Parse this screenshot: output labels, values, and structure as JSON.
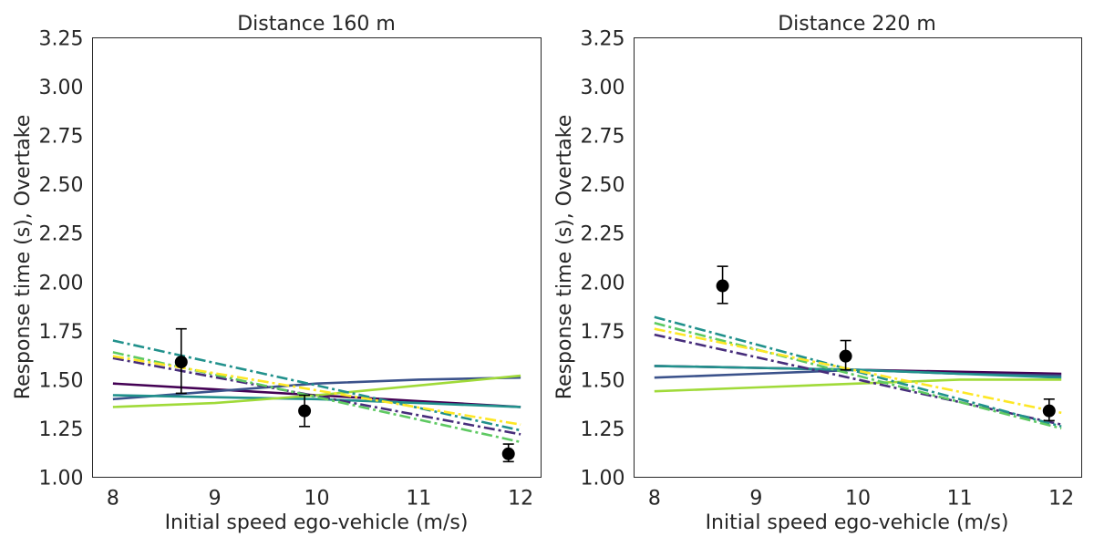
{
  "chart_data": [
    {
      "type": "line",
      "title": "Distance 160 m",
      "xlabel": "Initial speed ego-vehicle (m/s)",
      "ylabel": "Response time (s), Overtake",
      "xlim": [
        7.8,
        12.2
      ],
      "ylim": [
        1.0,
        3.25
      ],
      "xticks": [
        "8",
        "9",
        "10",
        "11",
        "12"
      ],
      "yticks": [
        "1.00",
        "1.25",
        "1.50",
        "1.75",
        "2.00",
        "2.25",
        "2.50",
        "2.75",
        "3.00",
        "3.25"
      ],
      "grid": false,
      "observed": {
        "x": [
          8.67,
          9.88,
          11.88
        ],
        "y": [
          1.59,
          1.34,
          1.12
        ],
        "err_low": [
          1.43,
          1.26,
          1.08
        ],
        "err_high": [
          1.76,
          1.42,
          1.17
        ]
      },
      "series": [
        {
          "color": "#440154",
          "style": "solid",
          "x": [
            8,
            9,
            10,
            11,
            12
          ],
          "y": [
            1.48,
            1.45,
            1.42,
            1.39,
            1.36
          ]
        },
        {
          "color": "#3b528b",
          "style": "solid",
          "x": [
            8,
            9,
            10,
            11,
            12
          ],
          "y": [
            1.4,
            1.44,
            1.48,
            1.5,
            1.51
          ]
        },
        {
          "color": "#21918c",
          "style": "solid",
          "x": [
            8,
            9,
            10,
            11,
            12
          ],
          "y": [
            1.42,
            1.41,
            1.4,
            1.38,
            1.36
          ]
        },
        {
          "color": "#a0da39",
          "style": "solid",
          "x": [
            8,
            9,
            10,
            11,
            12
          ],
          "y": [
            1.36,
            1.38,
            1.42,
            1.47,
            1.52
          ]
        },
        {
          "color": "#472d7b",
          "style": "dashdot",
          "x": [
            8,
            12
          ],
          "y": [
            1.61,
            1.22
          ]
        },
        {
          "color": "#21918c",
          "style": "dashdot",
          "x": [
            8,
            12
          ],
          "y": [
            1.7,
            1.24
          ]
        },
        {
          "color": "#5ec962",
          "style": "dashdot",
          "x": [
            8,
            12
          ],
          "y": [
            1.64,
            1.18
          ]
        },
        {
          "color": "#fde725",
          "style": "dashdot",
          "x": [
            8,
            12
          ],
          "y": [
            1.62,
            1.27
          ]
        }
      ]
    },
    {
      "type": "line",
      "title": "Distance 220 m",
      "xlabel": "Initial speed ego-vehicle (m/s)",
      "ylabel": "Response time (s), Overtake",
      "xlim": [
        7.8,
        12.2
      ],
      "ylim": [
        1.0,
        3.25
      ],
      "xticks": [
        "8",
        "9",
        "10",
        "11",
        "12"
      ],
      "yticks": [
        "1.00",
        "1.25",
        "1.50",
        "1.75",
        "2.00",
        "2.25",
        "2.50",
        "2.75",
        "3.00",
        "3.25"
      ],
      "grid": false,
      "observed": {
        "x": [
          8.67,
          9.88,
          11.88
        ],
        "y": [
          1.98,
          1.62,
          1.34
        ],
        "err_low": [
          1.89,
          1.55,
          1.29
        ],
        "err_high": [
          2.08,
          1.7,
          1.4
        ]
      },
      "series": [
        {
          "color": "#440154",
          "style": "solid",
          "x": [
            8,
            9,
            10,
            11,
            12
          ],
          "y": [
            1.57,
            1.56,
            1.55,
            1.54,
            1.53
          ]
        },
        {
          "color": "#3b528b",
          "style": "solid",
          "x": [
            8,
            9,
            10,
            11,
            12
          ],
          "y": [
            1.51,
            1.53,
            1.55,
            1.53,
            1.52
          ]
        },
        {
          "color": "#21918c",
          "style": "solid",
          "x": [
            8,
            9,
            10,
            11,
            12
          ],
          "y": [
            1.57,
            1.56,
            1.55,
            1.53,
            1.51
          ]
        },
        {
          "color": "#a0da39",
          "style": "solid",
          "x": [
            8,
            9,
            10,
            11,
            12
          ],
          "y": [
            1.44,
            1.46,
            1.48,
            1.5,
            1.5
          ]
        },
        {
          "color": "#472d7b",
          "style": "dashdot",
          "x": [
            8,
            12
          ],
          "y": [
            1.73,
            1.27
          ]
        },
        {
          "color": "#21918c",
          "style": "dashdot",
          "x": [
            8,
            12
          ],
          "y": [
            1.82,
            1.26
          ]
        },
        {
          "color": "#5ec962",
          "style": "dashdot",
          "x": [
            8,
            12
          ],
          "y": [
            1.79,
            1.25
          ]
        },
        {
          "color": "#fde725",
          "style": "dashdot",
          "x": [
            8,
            12
          ],
          "y": [
            1.76,
            1.33
          ]
        }
      ]
    }
  ]
}
